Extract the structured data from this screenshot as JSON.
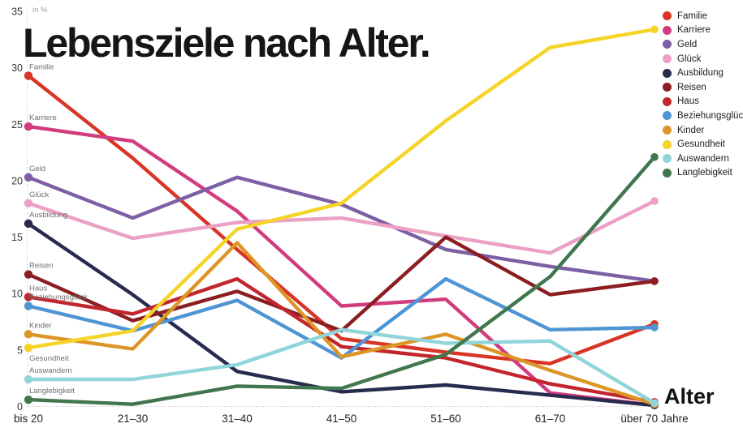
{
  "title": "Lebensziele nach Alter.",
  "y_axis": {
    "unit_label": "in %",
    "ticks": [
      0,
      5,
      10,
      15,
      20,
      25,
      30,
      35
    ]
  },
  "x_axis": {
    "title": "Alter"
  },
  "chart_data": {
    "type": "line",
    "title": "Lebensziele nach Alter.",
    "ylabel": "in %",
    "xlabel": "Alter",
    "ylim": [
      0,
      35
    ],
    "grid": "dotted axis lines only",
    "legend_position": "top-right",
    "categories": [
      "bis 20",
      "21–30",
      "31–40",
      "41–50",
      "51–60",
      "61–70",
      "über 70 Jahre"
    ],
    "series": [
      {
        "name": "Familie",
        "color": "#d93526",
        "values": [
          29.3,
          22.0,
          13.9,
          6.0,
          4.8,
          3.8,
          7.3
        ]
      },
      {
        "name": "Karriere",
        "color": "#d13c7e",
        "values": [
          24.8,
          23.5,
          17.3,
          8.9,
          9.5,
          1.2,
          0.1
        ]
      },
      {
        "name": "Geld",
        "color": "#7d5fa5",
        "values": [
          20.3,
          16.7,
          20.3,
          17.9,
          13.9,
          12.4,
          11.1
        ]
      },
      {
        "name": "Glück",
        "color": "#eba0c4",
        "values": [
          18.0,
          14.9,
          16.3,
          16.7,
          15.1,
          13.6,
          18.2
        ]
      },
      {
        "name": "Ausbildung",
        "color": "#272b4e",
        "values": [
          16.2,
          9.9,
          3.1,
          1.3,
          1.9,
          1.0,
          0.1
        ]
      },
      {
        "name": "Reisen",
        "color": "#8c1e22",
        "values": [
          11.7,
          7.6,
          10.2,
          6.7,
          15.0,
          9.9,
          11.1
        ]
      },
      {
        "name": "Haus",
        "color": "#c2262c",
        "values": [
          9.7,
          8.2,
          11.3,
          5.3,
          4.3,
          2.0,
          0.4
        ]
      },
      {
        "name": "Beziehungsglück",
        "color": "#4f95d4",
        "values": [
          8.9,
          6.7,
          9.4,
          4.3,
          11.3,
          6.8,
          7.0
        ]
      },
      {
        "name": "Kinder",
        "color": "#dd9526",
        "values": [
          6.4,
          5.1,
          14.5,
          4.4,
          6.4,
          3.2,
          0.2
        ]
      },
      {
        "name": "Gesundheit",
        "color": "#f6d327",
        "values": [
          5.2,
          6.7,
          15.7,
          18.0,
          25.3,
          31.8,
          33.4
        ],
        "label_below": true
      },
      {
        "name": "Auswandern",
        "color": "#8fd5da",
        "values": [
          2.4,
          2.4,
          3.7,
          6.8,
          5.6,
          5.8,
          0.3
        ]
      },
      {
        "name": "Langlebigkeit",
        "color": "#41774f",
        "values": [
          0.6,
          0.2,
          1.8,
          1.6,
          4.6,
          11.5,
          22.1
        ]
      }
    ]
  }
}
